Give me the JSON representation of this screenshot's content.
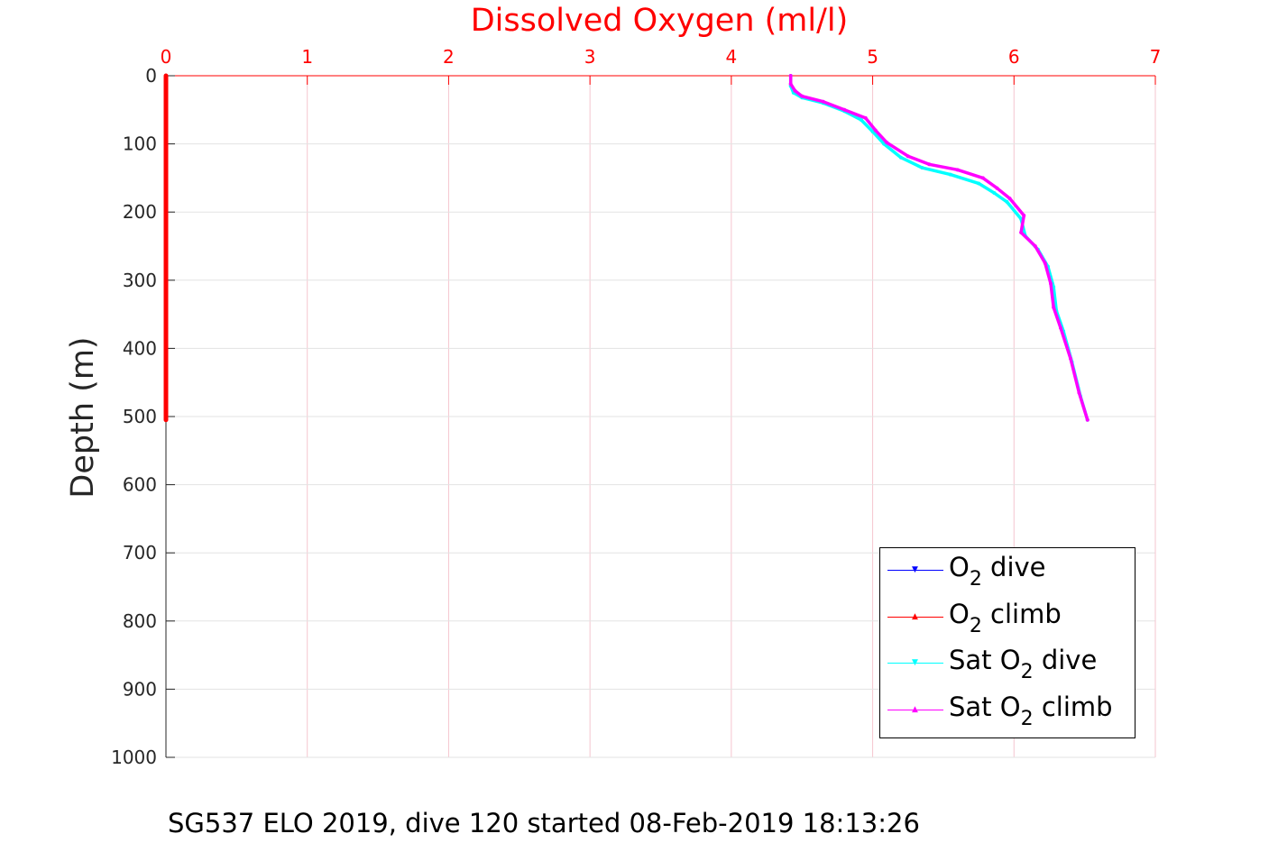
{
  "chart_data": {
    "type": "line",
    "title": "Dissolved Oxygen (ml/l)",
    "ylabel": "Depth (m)",
    "xlim": [
      0,
      7
    ],
    "ylim": [
      0,
      1000
    ],
    "y_reversed": true,
    "x_axis_position": "top",
    "x_ticks": [
      0,
      1,
      2,
      3,
      4,
      5,
      6,
      7
    ],
    "y_ticks": [
      0,
      100,
      200,
      300,
      400,
      500,
      600,
      700,
      800,
      900,
      1000
    ],
    "grid": true,
    "legend_position": "bottom-right",
    "colors": {
      "title": "#ff0000",
      "x_axis": "#ff0000",
      "y_axis": "#262626",
      "grid": "#f5c6cf"
    },
    "series": [
      {
        "name": "O2 dive",
        "color": "#0000ff",
        "points": [
          [
            0,
            0
          ],
          [
            0,
            505
          ]
        ]
      },
      {
        "name": "O2 climb",
        "color": "#ff0000",
        "points": [
          [
            0,
            0
          ],
          [
            0,
            100
          ],
          [
            0,
            200
          ],
          [
            0,
            300
          ],
          [
            0,
            400
          ],
          [
            0,
            505
          ]
        ]
      },
      {
        "name": "Sat O2 dive",
        "color": "#00ffff",
        "points": [
          [
            4.42,
            0
          ],
          [
            4.42,
            15
          ],
          [
            4.44,
            25
          ],
          [
            4.5,
            32
          ],
          [
            4.65,
            40
          ],
          [
            4.8,
            52
          ],
          [
            4.92,
            65
          ],
          [
            5.0,
            82
          ],
          [
            5.08,
            100
          ],
          [
            5.2,
            120
          ],
          [
            5.35,
            135
          ],
          [
            5.55,
            145
          ],
          [
            5.75,
            158
          ],
          [
            5.86,
            172
          ],
          [
            5.95,
            185
          ],
          [
            6.05,
            210
          ],
          [
            6.08,
            235
          ],
          [
            6.17,
            255
          ],
          [
            6.24,
            280
          ],
          [
            6.28,
            310
          ],
          [
            6.3,
            345
          ],
          [
            6.35,
            375
          ],
          [
            6.41,
            420
          ],
          [
            6.47,
            470
          ],
          [
            6.52,
            505
          ]
        ]
      },
      {
        "name": "Sat O2 climb",
        "color": "#ff00ff",
        "points": [
          [
            4.42,
            0
          ],
          [
            4.42,
            12
          ],
          [
            4.45,
            22
          ],
          [
            4.5,
            30
          ],
          [
            4.65,
            38
          ],
          [
            4.8,
            50
          ],
          [
            4.95,
            62
          ],
          [
            5.02,
            80
          ],
          [
            5.1,
            98
          ],
          [
            5.25,
            118
          ],
          [
            5.4,
            130
          ],
          [
            5.6,
            138
          ],
          [
            5.78,
            150
          ],
          [
            5.88,
            165
          ],
          [
            5.97,
            180
          ],
          [
            6.07,
            205
          ],
          [
            6.05,
            230
          ],
          [
            6.15,
            250
          ],
          [
            6.22,
            275
          ],
          [
            6.26,
            305
          ],
          [
            6.28,
            340
          ],
          [
            6.33,
            370
          ],
          [
            6.4,
            415
          ],
          [
            6.46,
            465
          ],
          [
            6.52,
            505
          ]
        ]
      }
    ]
  },
  "legend": {
    "items": [
      {
        "base": "O",
        "sub": "2",
        "rest": " dive",
        "color": "#0000ff",
        "marker": "▼"
      },
      {
        "base": "O",
        "sub": "2",
        "rest": " climb",
        "color": "#ff0000",
        "marker": "▲"
      },
      {
        "base": "Sat O",
        "sub": "2",
        "rest": " dive",
        "color": "#00ffff",
        "marker": "▼"
      },
      {
        "base": "Sat O",
        "sub": "2",
        "rest": " climb",
        "color": "#ff00ff",
        "marker": "▲"
      }
    ]
  },
  "footer": "SG537 ELO 2019, dive 120 started 08-Feb-2019 18:13:26"
}
